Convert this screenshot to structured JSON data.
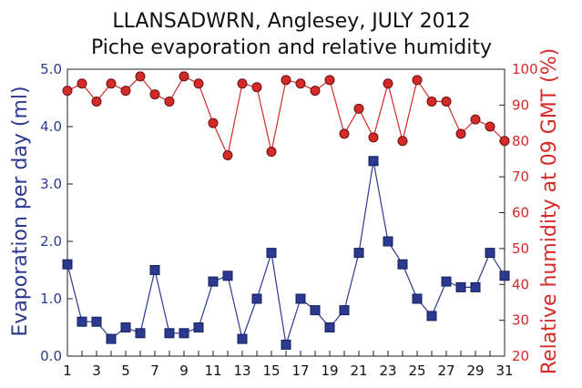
{
  "chart_data": {
    "type": "line",
    "title": "LLANSADWRN, Anglesey, JULY 2012",
    "subtitle": "Piche evaporation and relative humidity",
    "ylabel_left": "Evaporation per day (ml)",
    "ylabel_right": "Relative humidity at 09 GMT (%)",
    "xlim": [
      1,
      31
    ],
    "ylim_left": [
      0,
      5
    ],
    "ylim_right": [
      20,
      100
    ],
    "x_ticks": [
      "1",
      "3",
      "5",
      "7",
      "9",
      "11",
      "13",
      "15",
      "17",
      "19",
      "21",
      "23",
      "25",
      "27",
      "29",
      "31"
    ],
    "y_left_ticks": [
      "0.0",
      "1.0",
      "2.0",
      "3.0",
      "4.0",
      "5.0"
    ],
    "y_right_ticks": [
      "20",
      "30",
      "40",
      "50",
      "60",
      "70",
      "80",
      "90",
      "100"
    ],
    "grid": false,
    "legend": "none",
    "x": [
      1,
      2,
      3,
      4,
      5,
      6,
      7,
      8,
      9,
      10,
      11,
      12,
      13,
      14,
      15,
      16,
      17,
      18,
      19,
      20,
      21,
      22,
      23,
      24,
      25,
      26,
      27,
      28,
      29,
      30,
      31
    ],
    "series": [
      {
        "axis": "left",
        "marker": "square",
        "color": "#2b3a8f",
        "values": [
          1.6,
          0.6,
          0.6,
          0.3,
          0.5,
          0.4,
          1.5,
          0.4,
          0.4,
          0.5,
          1.3,
          1.4,
          0.3,
          1.0,
          1.8,
          0.2,
          1.0,
          0.8,
          0.5,
          0.8,
          1.8,
          3.4,
          2.0,
          1.6,
          1.0,
          0.7,
          1.3,
          1.2,
          1.2,
          1.8,
          1.4
        ]
      },
      {
        "axis": "right",
        "marker": "circle",
        "color": "#d42a2a",
        "values": [
          94,
          96,
          91,
          96,
          94,
          98,
          93,
          91,
          98,
          96,
          85,
          76,
          96,
          95,
          77,
          97,
          96,
          94,
          97,
          82,
          89,
          81,
          96,
          80,
          97,
          91,
          91,
          82,
          86,
          84,
          80
        ]
      }
    ]
  }
}
